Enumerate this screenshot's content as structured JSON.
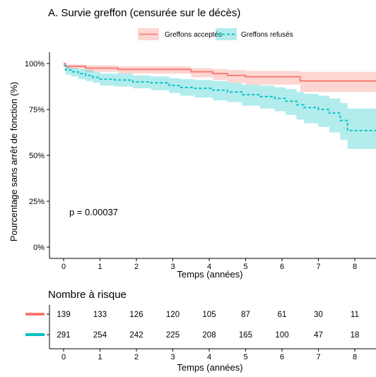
{
  "chart_data": {
    "type": "line",
    "title": "A. Survie greffon (censurée sur le décès)",
    "xlabel": "Temps (années)",
    "ylabel": "Pourcentage sans arrêt de fonction (%)",
    "xlim": [
      -0.4,
      8.6
    ],
    "ylim": [
      0,
      1
    ],
    "x_ticks": [
      "0",
      "1",
      "2",
      "3",
      "4",
      "5",
      "6",
      "7",
      "8"
    ],
    "y_ticks": [
      "0%",
      "25%",
      "50%",
      "75%",
      "100%"
    ],
    "annotation": "p = 0.00037",
    "legend_position": "top",
    "grid": false,
    "series": [
      {
        "name": "Greffons acceptés",
        "color": "#F8766D",
        "line_style": "solid",
        "points": [
          [
            0,
            1.0
          ],
          [
            0.05,
            0.985
          ],
          [
            0.6,
            0.975
          ],
          [
            1.5,
            0.968
          ],
          [
            3.5,
            0.955
          ],
          [
            4.1,
            0.945
          ],
          [
            4.5,
            0.935
          ],
          [
            5.0,
            0.928
          ],
          [
            6.5,
            0.905
          ],
          [
            8.6,
            0.905
          ]
        ],
        "ci_lower": [
          [
            0,
            1.0
          ],
          [
            0.05,
            0.97
          ],
          [
            0.6,
            0.955
          ],
          [
            1.5,
            0.945
          ],
          [
            3.5,
            0.925
          ],
          [
            4.1,
            0.91
          ],
          [
            4.5,
            0.895
          ],
          [
            5.0,
            0.885
          ],
          [
            6.5,
            0.845
          ],
          [
            8.6,
            0.845
          ]
        ],
        "ci_upper": [
          [
            0,
            1.0
          ],
          [
            0.05,
            0.995
          ],
          [
            0.6,
            0.99
          ],
          [
            1.5,
            0.985
          ],
          [
            3.5,
            0.975
          ],
          [
            4.1,
            0.97
          ],
          [
            4.5,
            0.965
          ],
          [
            5.0,
            0.96
          ],
          [
            6.5,
            0.955
          ],
          [
            8.6,
            0.955
          ]
        ]
      },
      {
        "name": "Greffons refusés",
        "color": "#00BFC4",
        "line_style": "dashed",
        "points": [
          [
            0,
            0.99
          ],
          [
            0.05,
            0.965
          ],
          [
            0.2,
            0.955
          ],
          [
            0.4,
            0.945
          ],
          [
            0.6,
            0.935
          ],
          [
            0.8,
            0.925
          ],
          [
            1.0,
            0.915
          ],
          [
            1.4,
            0.91
          ],
          [
            1.9,
            0.9
          ],
          [
            2.4,
            0.895
          ],
          [
            2.9,
            0.88
          ],
          [
            3.2,
            0.87
          ],
          [
            3.6,
            0.865
          ],
          [
            4.1,
            0.855
          ],
          [
            4.5,
            0.845
          ],
          [
            4.9,
            0.83
          ],
          [
            5.4,
            0.82
          ],
          [
            5.8,
            0.81
          ],
          [
            6.1,
            0.795
          ],
          [
            6.4,
            0.775
          ],
          [
            6.6,
            0.76
          ],
          [
            7.0,
            0.75
          ],
          [
            7.3,
            0.73
          ],
          [
            7.6,
            0.69
          ],
          [
            7.8,
            0.635
          ],
          [
            8.6,
            0.635
          ]
        ],
        "ci_lower": [
          [
            0,
            0.99
          ],
          [
            0.05,
            0.94
          ],
          [
            0.2,
            0.93
          ],
          [
            0.4,
            0.915
          ],
          [
            0.6,
            0.905
          ],
          [
            0.8,
            0.895
          ],
          [
            1.0,
            0.88
          ],
          [
            1.4,
            0.875
          ],
          [
            1.9,
            0.865
          ],
          [
            2.4,
            0.855
          ],
          [
            2.9,
            0.84
          ],
          [
            3.2,
            0.825
          ],
          [
            3.6,
            0.815
          ],
          [
            4.1,
            0.8
          ],
          [
            4.5,
            0.79
          ],
          [
            4.9,
            0.77
          ],
          [
            5.4,
            0.755
          ],
          [
            5.8,
            0.74
          ],
          [
            6.1,
            0.72
          ],
          [
            6.4,
            0.695
          ],
          [
            6.6,
            0.675
          ],
          [
            7.0,
            0.655
          ],
          [
            7.3,
            0.625
          ],
          [
            7.6,
            0.585
          ],
          [
            7.8,
            0.535
          ],
          [
            8.6,
            0.535
          ]
        ],
        "ci_upper": [
          [
            0,
            0.99
          ],
          [
            0.05,
            0.985
          ],
          [
            0.2,
            0.975
          ],
          [
            0.4,
            0.97
          ],
          [
            0.6,
            0.965
          ],
          [
            0.8,
            0.955
          ],
          [
            1.0,
            0.945
          ],
          [
            1.4,
            0.945
          ],
          [
            1.9,
            0.935
          ],
          [
            2.4,
            0.93
          ],
          [
            2.9,
            0.92
          ],
          [
            3.2,
            0.915
          ],
          [
            3.6,
            0.91
          ],
          [
            4.1,
            0.905
          ],
          [
            4.5,
            0.895
          ],
          [
            4.9,
            0.885
          ],
          [
            5.4,
            0.88
          ],
          [
            5.8,
            0.87
          ],
          [
            6.1,
            0.86
          ],
          [
            6.4,
            0.845
          ],
          [
            6.6,
            0.835
          ],
          [
            7.0,
            0.825
          ],
          [
            7.3,
            0.81
          ],
          [
            7.6,
            0.785
          ],
          [
            7.8,
            0.755
          ],
          [
            8.6,
            0.755
          ]
        ]
      }
    ],
    "risk_table": {
      "title": "Nombre à risque",
      "xlabel": "Temps (années)",
      "times": [
        "0",
        "1",
        "2",
        "3",
        "4",
        "5",
        "6",
        "7",
        "8"
      ],
      "rows": [
        {
          "series": "Greffons acceptés",
          "color": "#F8766D",
          "values": [
            "139",
            "133",
            "126",
            "120",
            "105",
            "87",
            "61",
            "30",
            "11"
          ]
        },
        {
          "series": "Greffons refusés",
          "color": "#00BFC4",
          "values": [
            "291",
            "254",
            "242",
            "225",
            "208",
            "165",
            "100",
            "47",
            "18"
          ]
        }
      ]
    }
  }
}
